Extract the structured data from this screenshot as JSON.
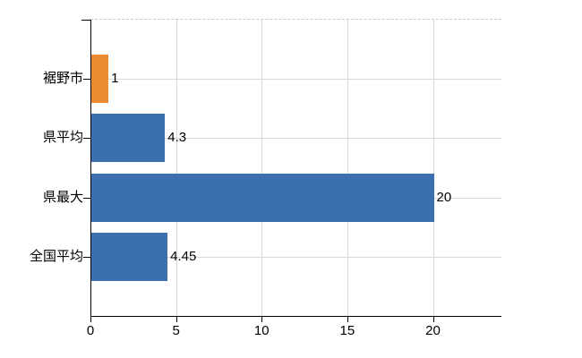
{
  "chart_data": {
    "type": "bar",
    "orientation": "horizontal",
    "title": "",
    "xlabel": "",
    "ylabel": "",
    "categories": [
      "裾野市",
      "県平均",
      "県最大",
      "全国平均"
    ],
    "values": [
      1,
      4.3,
      20,
      4.45
    ],
    "value_labels": [
      "1",
      "4.3",
      "20",
      "4.45"
    ],
    "series_colors": [
      "#EB8C32",
      "#3B6FAE",
      "#3B6FAE",
      "#3B6FAE"
    ],
    "x_ticks": [
      "0",
      "5",
      "10",
      "15",
      "20"
    ],
    "x_tick_values": [
      0,
      5,
      10,
      15,
      20
    ],
    "xlim": [
      0,
      24
    ],
    "grid": true,
    "legend": false,
    "colors": {
      "grid": "#d9d9d9",
      "top_border": "#cccccc",
      "axis": "#000000",
      "text": "#000000",
      "background": "#ffffff"
    }
  }
}
